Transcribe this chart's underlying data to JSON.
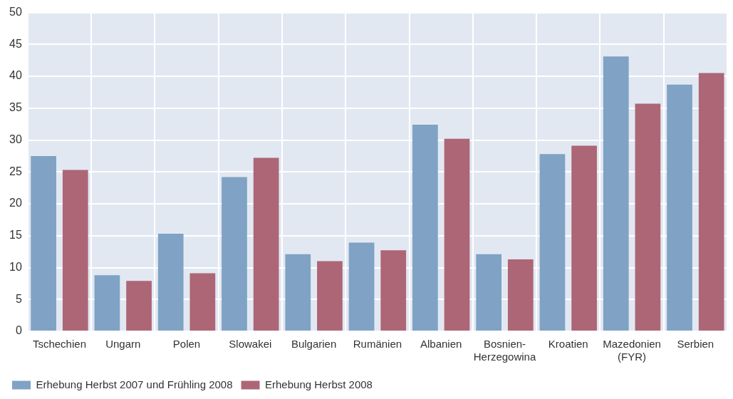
{
  "chart_data": {
    "type": "bar",
    "categories": [
      "Tschechien",
      "Ungarn",
      "Polen",
      "Slowakei",
      "Bulgarien",
      "Rumänien",
      "Albanien",
      "Bosnien-Herzegowina",
      "Kroatien",
      "Mazedonien (FYR)",
      "Serbien"
    ],
    "series": [
      {
        "name": "Erhebung Herbst 2007 und Frühling 2008",
        "color": "#7fa2c5",
        "values": [
          27.5,
          8.8,
          15.3,
          24.2,
          12.1,
          13.9,
          32.4,
          12.1,
          27.8,
          43.1,
          38.7
        ]
      },
      {
        "name": "Erhebung Herbst 2008",
        "color": "#ad6676",
        "values": [
          25.3,
          7.9,
          9.1,
          27.2,
          11.0,
          12.7,
          30.2,
          11.3,
          29.1,
          35.7,
          40.5
        ]
      }
    ],
    "ylim": [
      0,
      50
    ],
    "yticks": [
      0,
      5,
      10,
      15,
      20,
      25,
      30,
      35,
      40,
      45,
      50
    ],
    "grid": true,
    "legend": "bottom left"
  }
}
